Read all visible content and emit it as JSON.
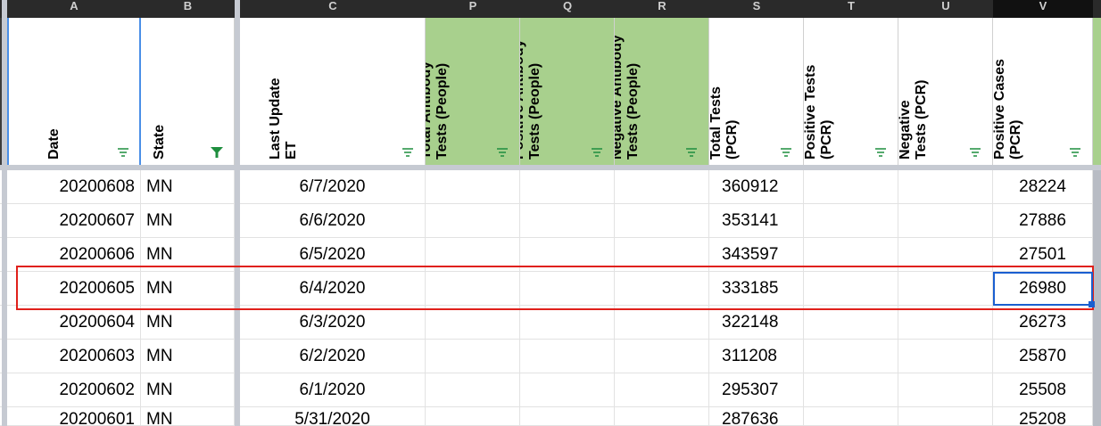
{
  "column_letters": [
    {
      "id": "A",
      "label": "A"
    },
    {
      "id": "B",
      "label": "B"
    },
    {
      "id": "C",
      "label": "C"
    },
    {
      "id": "D",
      "label": "P"
    },
    {
      "id": "E",
      "label": "Q"
    },
    {
      "id": "F",
      "label": "R"
    },
    {
      "id": "G",
      "label": "S"
    },
    {
      "id": "H",
      "label": "T"
    },
    {
      "id": "I",
      "label": "U"
    },
    {
      "id": "J",
      "label": "V"
    }
  ],
  "headers": [
    {
      "label": "Date",
      "filter": "filter-icon"
    },
    {
      "label": "State",
      "filter": "filter-active-icon"
    },
    {
      "label": "Last Update ET",
      "filter": "filter-icon"
    },
    {
      "label": "Total Antibody Tests (People)",
      "filter": "filter-icon"
    },
    {
      "label": "Positive Antibody Tests (People)",
      "filter": "filter-icon"
    },
    {
      "label": "Negative Antibody Tests (People)",
      "filter": "filter-icon"
    },
    {
      "label": "Total Tests (PCR)",
      "filter": "filter-icon"
    },
    {
      "label": "Positive Tests (PCR)",
      "filter": "filter-icon"
    },
    {
      "label": "Negative Tests (PCR)",
      "filter": "filter-icon"
    },
    {
      "label": "Positive Cases (PCR)",
      "filter": "filter-icon"
    }
  ],
  "rows": [
    {
      "date": "20200608",
      "state": "MN",
      "last_update": "6/7/2020",
      "total_tests": "360912",
      "positive_cases": "28224"
    },
    {
      "date": "20200607",
      "state": "MN",
      "last_update": "6/6/2020",
      "total_tests": "353141",
      "positive_cases": "27886"
    },
    {
      "date": "20200606",
      "state": "MN",
      "last_update": "6/5/2020",
      "total_tests": "343597",
      "positive_cases": "27501"
    },
    {
      "date": "20200605",
      "state": "MN",
      "last_update": "6/4/2020",
      "total_tests": "333185",
      "positive_cases": "26980"
    },
    {
      "date": "20200604",
      "state": "MN",
      "last_update": "6/3/2020",
      "total_tests": "322148",
      "positive_cases": "26273"
    },
    {
      "date": "20200603",
      "state": "MN",
      "last_update": "6/2/2020",
      "total_tests": "311208",
      "positive_cases": "25870"
    },
    {
      "date": "20200602",
      "state": "MN",
      "last_update": "6/1/2020",
      "total_tests": "295307",
      "positive_cases": "25508"
    },
    {
      "date": "20200601",
      "state": "MN",
      "last_update": "5/31/2020",
      "total_tests": "287636",
      "positive_cases": "25208"
    }
  ],
  "colors": {
    "header_green": "#a8d08d",
    "highlight_red": "#e0201b",
    "selection_blue": "#1a5fd0",
    "filter_green": "#1e8e3e"
  },
  "highlighted_row_index": 3,
  "selected_cell": {
    "row_index": 3,
    "column": "positive_cases"
  }
}
